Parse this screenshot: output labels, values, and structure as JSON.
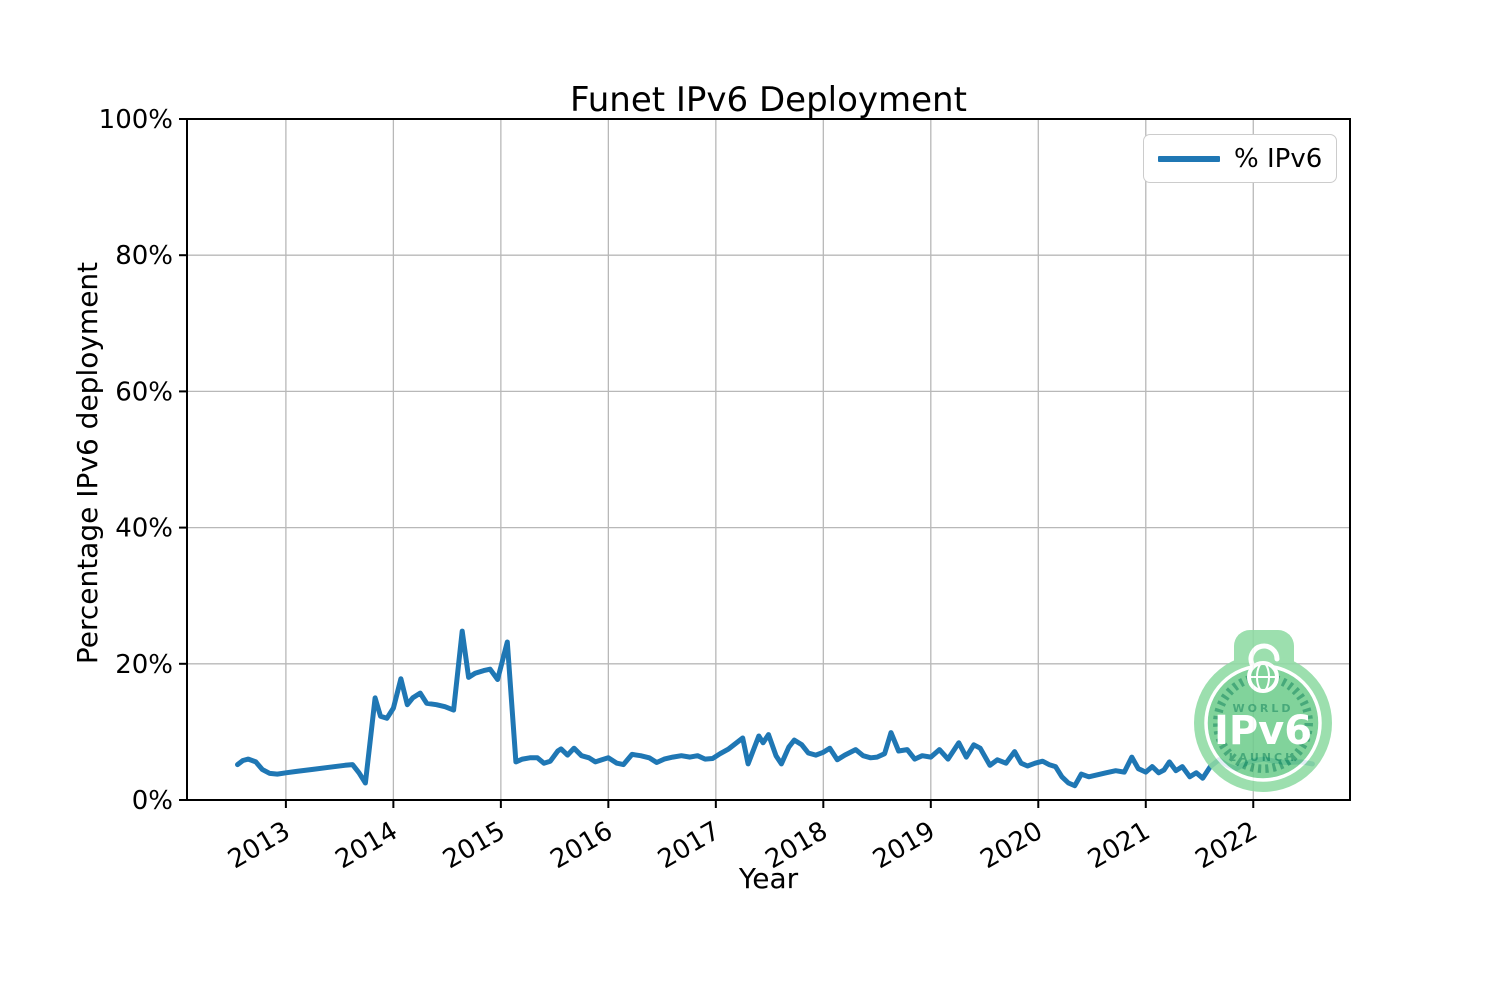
{
  "title": "Funet IPv6 Deployment",
  "axes": {
    "xlabel": "Year",
    "ylabel": "Percentage IPv6 deployment"
  },
  "legend": {
    "label": "% IPv6",
    "position": "upper right"
  },
  "colors": {
    "line": "#1f77b4",
    "grid": "#b8b8b8",
    "frame": "#000000",
    "background": "#ffffff",
    "badge_outer": "#8fdba3",
    "badge_disc": "#70cd8e",
    "badge_dark": "#2e9e68",
    "badge_text": "#ffffff"
  },
  "badge": {
    "word_top": "WORLD",
    "word_main": "IPv6",
    "word_bottom": "LAUNCH"
  },
  "chart_data": {
    "type": "line",
    "title": "Funet IPv6 Deployment",
    "xlabel": "Year",
    "ylabel": "Percentage IPv6 deployment",
    "xlim": [
      2012.08,
      2022.9
    ],
    "ylim": [
      0,
      100
    ],
    "grid": true,
    "legend_position": "upper right",
    "xticks": {
      "values": [
        2013,
        2014,
        2015,
        2016,
        2017,
        2018,
        2019,
        2020,
        2021,
        2022
      ],
      "labels": [
        "2013",
        "2014",
        "2015",
        "2016",
        "2017",
        "2018",
        "2019",
        "2020",
        "2021",
        "2022"
      ]
    },
    "yticks": {
      "values": [
        0,
        20,
        40,
        60,
        80,
        100
      ],
      "labels": [
        "0%",
        "20%",
        "40%",
        "60%",
        "80%",
        "100%"
      ]
    },
    "series": [
      {
        "name": "% IPv6",
        "color": "#1f77b4",
        "points": [
          [
            2012.55,
            5.2
          ],
          [
            2012.6,
            5.8
          ],
          [
            2012.65,
            6.0
          ],
          [
            2012.72,
            5.6
          ],
          [
            2012.78,
            4.5
          ],
          [
            2012.85,
            3.9
          ],
          [
            2012.92,
            3.8
          ],
          [
            2013.0,
            4.0
          ],
          [
            2013.1,
            4.2
          ],
          [
            2013.25,
            4.5
          ],
          [
            2013.4,
            4.8
          ],
          [
            2013.55,
            5.1
          ],
          [
            2013.62,
            5.2
          ],
          [
            2013.68,
            4.0
          ],
          [
            2013.74,
            2.5
          ],
          [
            2013.83,
            15.0
          ],
          [
            2013.88,
            12.3
          ],
          [
            2013.94,
            12.0
          ],
          [
            2014.0,
            13.5
          ],
          [
            2014.07,
            17.8
          ],
          [
            2014.13,
            14.0
          ],
          [
            2014.18,
            15.0
          ],
          [
            2014.25,
            15.7
          ],
          [
            2014.31,
            14.2
          ],
          [
            2014.4,
            14.0
          ],
          [
            2014.48,
            13.7
          ],
          [
            2014.56,
            13.2
          ],
          [
            2014.64,
            24.8
          ],
          [
            2014.7,
            18.0
          ],
          [
            2014.76,
            18.6
          ],
          [
            2014.84,
            19.0
          ],
          [
            2014.9,
            19.2
          ],
          [
            2014.97,
            17.7
          ],
          [
            2015.06,
            23.2
          ],
          [
            2015.14,
            5.6
          ],
          [
            2015.2,
            6.0
          ],
          [
            2015.27,
            6.2
          ],
          [
            2015.34,
            6.2
          ],
          [
            2015.4,
            5.4
          ],
          [
            2015.46,
            5.7
          ],
          [
            2015.53,
            7.2
          ],
          [
            2015.56,
            7.5
          ],
          [
            2015.62,
            6.6
          ],
          [
            2015.68,
            7.6
          ],
          [
            2015.75,
            6.5
          ],
          [
            2015.82,
            6.2
          ],
          [
            2015.88,
            5.6
          ],
          [
            2015.94,
            5.9
          ],
          [
            2016.0,
            6.2
          ],
          [
            2016.08,
            5.4
          ],
          [
            2016.14,
            5.2
          ],
          [
            2016.22,
            6.7
          ],
          [
            2016.3,
            6.5
          ],
          [
            2016.38,
            6.2
          ],
          [
            2016.45,
            5.5
          ],
          [
            2016.52,
            6.0
          ],
          [
            2016.6,
            6.3
          ],
          [
            2016.68,
            6.5
          ],
          [
            2016.76,
            6.3
          ],
          [
            2016.83,
            6.5
          ],
          [
            2016.9,
            6.0
          ],
          [
            2016.97,
            6.1
          ],
          [
            2017.04,
            6.8
          ],
          [
            2017.12,
            7.5
          ],
          [
            2017.25,
            9.1
          ],
          [
            2017.3,
            5.3
          ],
          [
            2017.4,
            9.4
          ],
          [
            2017.44,
            8.4
          ],
          [
            2017.49,
            9.6
          ],
          [
            2017.56,
            6.5
          ],
          [
            2017.61,
            5.3
          ],
          [
            2017.68,
            7.8
          ],
          [
            2017.73,
            8.8
          ],
          [
            2017.8,
            8.1
          ],
          [
            2017.86,
            6.9
          ],
          [
            2017.93,
            6.6
          ],
          [
            2018.0,
            7.0
          ],
          [
            2018.06,
            7.6
          ],
          [
            2018.13,
            5.9
          ],
          [
            2018.2,
            6.6
          ],
          [
            2018.3,
            7.4
          ],
          [
            2018.37,
            6.5
          ],
          [
            2018.44,
            6.2
          ],
          [
            2018.5,
            6.3
          ],
          [
            2018.57,
            6.8
          ],
          [
            2018.63,
            9.9
          ],
          [
            2018.7,
            7.2
          ],
          [
            2018.78,
            7.4
          ],
          [
            2018.85,
            6.0
          ],
          [
            2018.92,
            6.5
          ],
          [
            2019.0,
            6.3
          ],
          [
            2019.08,
            7.4
          ],
          [
            2019.16,
            6.0
          ],
          [
            2019.26,
            8.4
          ],
          [
            2019.33,
            6.3
          ],
          [
            2019.4,
            8.1
          ],
          [
            2019.46,
            7.6
          ],
          [
            2019.55,
            5.1
          ],
          [
            2019.62,
            5.9
          ],
          [
            2019.7,
            5.4
          ],
          [
            2019.78,
            7.1
          ],
          [
            2019.84,
            5.4
          ],
          [
            2019.9,
            5.0
          ],
          [
            2019.97,
            5.4
          ],
          [
            2020.04,
            5.7
          ],
          [
            2020.1,
            5.2
          ],
          [
            2020.16,
            4.9
          ],
          [
            2020.22,
            3.4
          ],
          [
            2020.28,
            2.5
          ],
          [
            2020.34,
            2.1
          ],
          [
            2020.4,
            3.8
          ],
          [
            2020.47,
            3.4
          ],
          [
            2020.55,
            3.7
          ],
          [
            2020.63,
            4.0
          ],
          [
            2020.72,
            4.3
          ],
          [
            2020.8,
            4.1
          ],
          [
            2020.87,
            6.3
          ],
          [
            2020.93,
            4.6
          ],
          [
            2021.0,
            4.1
          ],
          [
            2021.06,
            4.9
          ],
          [
            2021.12,
            4.0
          ],
          [
            2021.17,
            4.4
          ],
          [
            2021.22,
            5.6
          ],
          [
            2021.28,
            4.3
          ],
          [
            2021.34,
            4.9
          ],
          [
            2021.41,
            3.4
          ],
          [
            2021.47,
            4.0
          ],
          [
            2021.53,
            3.2
          ],
          [
            2021.6,
            4.9
          ],
          [
            2021.68,
            5.9
          ],
          [
            2021.76,
            5.1
          ],
          [
            2021.84,
            4.6
          ],
          [
            2021.92,
            5.3
          ],
          [
            2022.0,
            5.8
          ],
          [
            2022.1,
            6.0
          ],
          [
            2022.2,
            5.7
          ],
          [
            2022.3,
            5.5
          ],
          [
            2022.45,
            5.6
          ],
          [
            2022.55,
            5.3
          ]
        ]
      }
    ]
  }
}
